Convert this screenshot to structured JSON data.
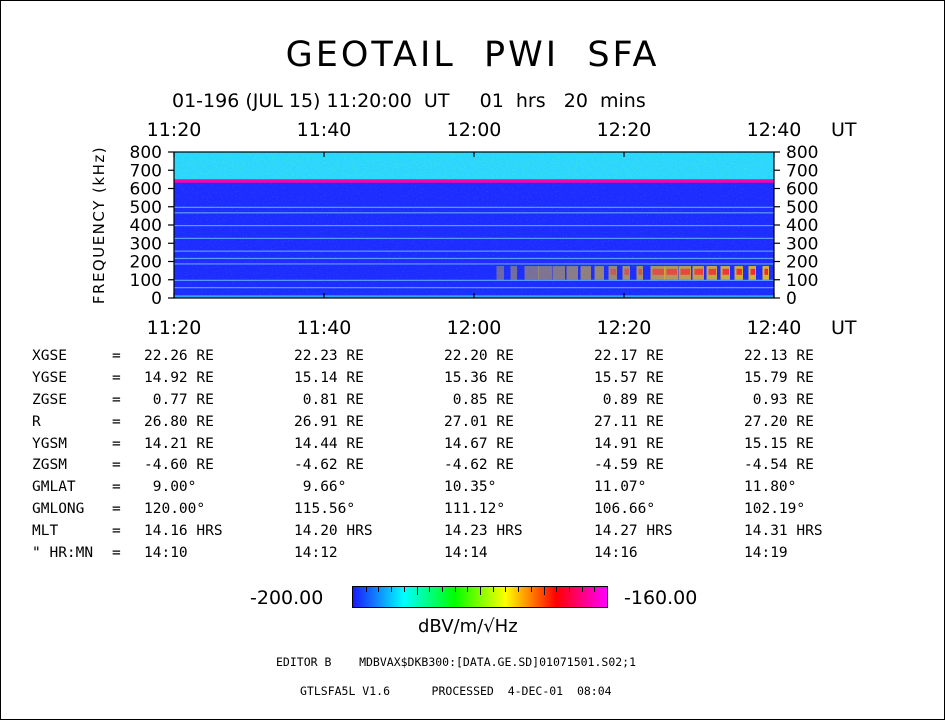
{
  "title": "GEOTAIL  PWI  SFA",
  "subtitle": "01-196 (JUL 15) 11:20:00  UT     01  hrs   20  mins",
  "chart_data": {
    "type": "heatmap",
    "title": "GEOTAIL  PWI  SFA",
    "ylabel": "FREQUENCY (kHz)",
    "time_unit": "UT",
    "x_ticks": [
      "11:20",
      "11:40",
      "12:00",
      "12:20",
      "12:40"
    ],
    "xlim": [
      "11:20",
      "12:40"
    ],
    "y_ticks": [
      0,
      100,
      200,
      300,
      400,
      500,
      600,
      700,
      800
    ],
    "ylim": [
      0,
      800
    ],
    "colorbar": {
      "min": "-200.00",
      "max": "-160.00",
      "unit": "dBV/m/√Hz",
      "colors": [
        "#1a1aff",
        "#00ffff",
        "#00ff00",
        "#ffff00",
        "#ff0000",
        "#ff00ff"
      ]
    },
    "background_colors": {
      "low": "#1e2dff",
      "mid": "#2ad5ff",
      "high": "#35ff5a",
      "line": "#ff00aa"
    },
    "features": [
      {
        "name": "narrowband line",
        "freq_khz": 640,
        "level_db": -162,
        "from": "11:20",
        "to": "12:40"
      },
      {
        "name": "noise band",
        "freq_khz": [
          650,
          800
        ],
        "level_db": -192
      },
      {
        "name": "emission",
        "freq_khz": [
          100,
          175
        ],
        "from": "12:03",
        "to": "12:40",
        "peak_db": -165
      }
    ]
  },
  "ephemeris": {
    "rows": [
      {
        "name": "XGSE",
        "eq": "=",
        "values": [
          "22.26 RE",
          "22.23 RE",
          "22.20 RE",
          "22.17 RE",
          "22.13 RE"
        ]
      },
      {
        "name": "YGSE",
        "eq": "=",
        "values": [
          "14.92 RE",
          "15.14 RE",
          "15.36 RE",
          "15.57 RE",
          "15.79 RE"
        ]
      },
      {
        "name": "ZGSE",
        "eq": "=",
        "values": [
          " 0.77 RE",
          " 0.81 RE",
          " 0.85 RE",
          " 0.89 RE",
          " 0.93 RE"
        ]
      },
      {
        "name": "R",
        "eq": "=",
        "values": [
          "26.80 RE",
          "26.91 RE",
          "27.01 RE",
          "27.11 RE",
          "27.20 RE"
        ]
      },
      {
        "name": "YGSM",
        "eq": "=",
        "values": [
          "14.21 RE",
          "14.44 RE",
          "14.67 RE",
          "14.91 RE",
          "15.15 RE"
        ]
      },
      {
        "name": "ZGSM",
        "eq": "=",
        "values": [
          "-4.60 RE",
          "-4.62 RE",
          "-4.62 RE",
          "-4.59 RE",
          "-4.54 RE"
        ]
      },
      {
        "name": "GMLAT",
        "eq": "=",
        "values": [
          " 9.00°",
          " 9.66°",
          "10.35°",
          "11.07°",
          "11.80°"
        ]
      },
      {
        "name": "GMLONG",
        "eq": "=",
        "values": [
          "120.00°",
          "115.56°",
          "111.12°",
          "106.66°",
          "102.19°"
        ]
      },
      {
        "name": "MLT",
        "eq": "=",
        "values": [
          "14.16 HRS",
          "14.20 HRS",
          "14.23 HRS",
          "14.27 HRS",
          "14.31 HRS"
        ]
      },
      {
        "name": "\" HR:MN",
        "eq": "=",
        "values": [
          "14:10",
          "14:12",
          "14:14",
          "14:16",
          "14:19"
        ]
      }
    ]
  },
  "colorbar_labels": {
    "min": "-200.00",
    "max": "-160.00",
    "unit": "dBV/m/√Hz"
  },
  "editor_line": "EDITOR B    MDBVAX$DKB300:[DATA.GE.SD]01071501.S02;1",
  "footer_line": "GTLSFA5L V1.6      PROCESSED  4-DEC-01  08:04"
}
